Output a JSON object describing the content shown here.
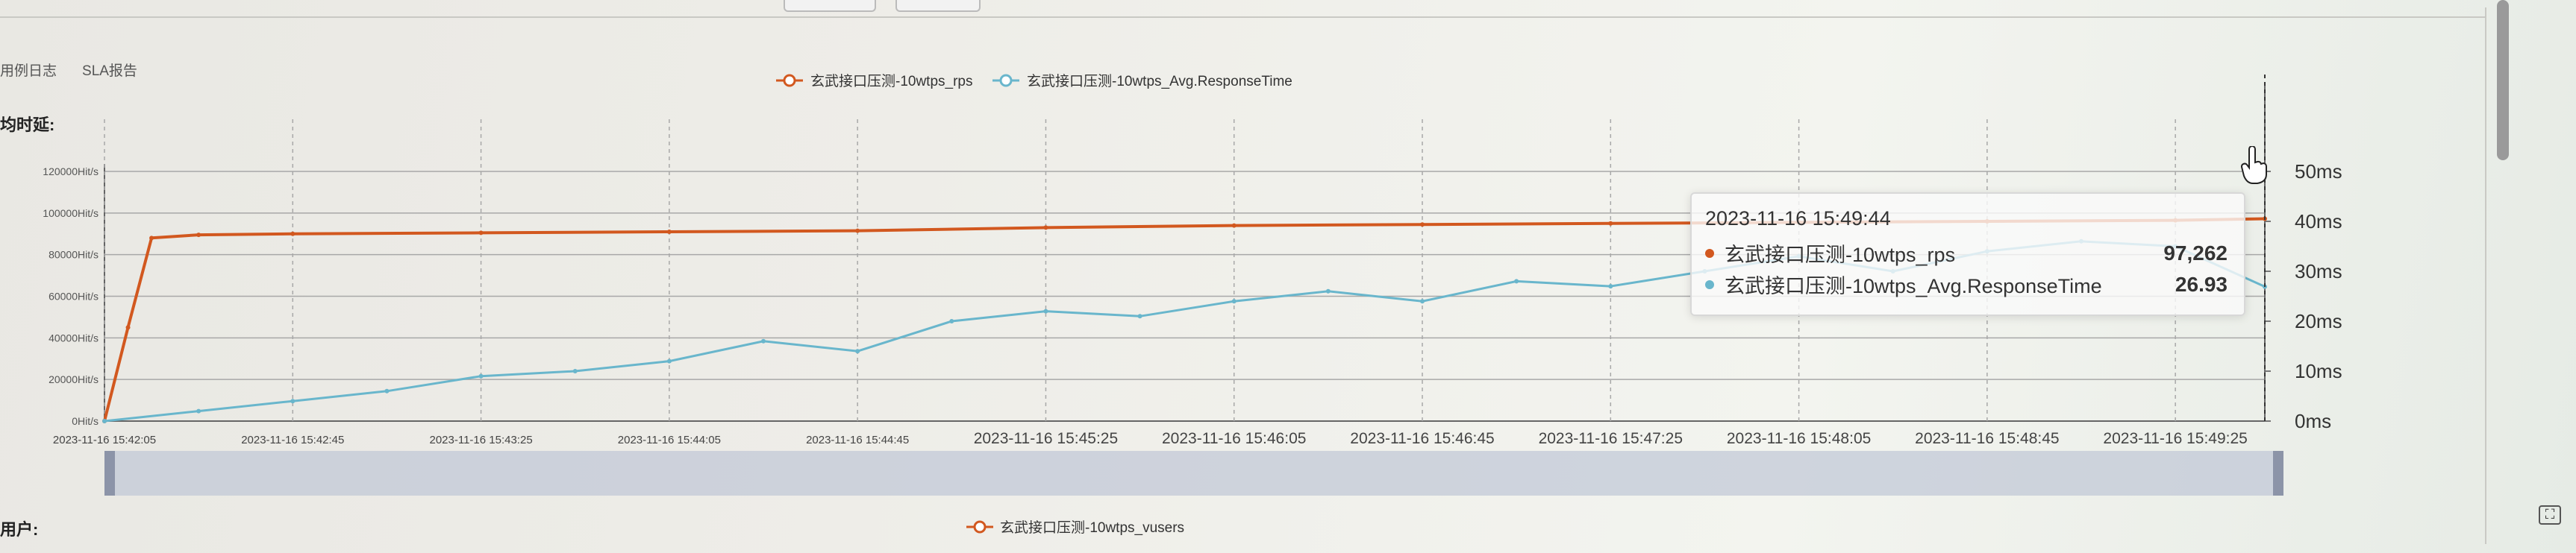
{
  "tabs": [
    "用例日志",
    "SLA报告"
  ],
  "section_titles": {
    "latency": "均时延:",
    "users": "用户:"
  },
  "icons": {
    "window": "window-icon",
    "cursor": "hand-cursor-icon"
  },
  "colors": {
    "rps": "#d2581f",
    "response_time": "#69b6cc",
    "grid": "#a8a8a8"
  },
  "tooltip": {
    "time": "2023-11-16 15:49:44",
    "rows": [
      {
        "name": "玄武接口压测-10wtps_rps",
        "value": "97,262",
        "color": "#d2581f"
      },
      {
        "name": "玄武接口压测-10wtps_Avg.ResponseTime",
        "value": "26.93",
        "color": "#69b6cc"
      }
    ]
  },
  "chart_data": {
    "type": "line",
    "legend": [
      "玄武接口压测-10wtps_rps",
      "玄武接口压测-10wtps_Avg.ResponseTime"
    ],
    "legend_position": "top-center",
    "x_ticks": [
      "2023-11-16 15:42:05",
      "2023-11-16 15:42:45",
      "2023-11-16 15:43:25",
      "2023-11-16 15:44:05",
      "2023-11-16 15:44:45",
      "2023-11-16 15:45:25",
      "2023-11-16 15:46:05",
      "2023-11-16 15:46:45",
      "2023-11-16 15:47:25",
      "2023-11-16 15:48:05",
      "2023-11-16 15:48:45",
      "2023-11-16 15:49:25"
    ],
    "y_left_ticks": [
      "0Hit/s",
      "20000Hit/s",
      "40000Hit/s",
      "60000Hit/s",
      "80000Hit/s",
      "100000Hit/s",
      "120000Hit/s"
    ],
    "y_left_range": [
      0,
      120000
    ],
    "y_right_ticks": [
      "0ms",
      "10ms",
      "20ms",
      "30ms",
      "40ms",
      "50ms"
    ],
    "y_right_range": [
      0,
      50
    ],
    "grid": true,
    "series": [
      {
        "name": "玄武接口压测-10wtps_rps",
        "axis": "left",
        "x": [
          "15:42:05",
          "15:42:10",
          "15:42:15",
          "15:42:25",
          "15:42:45",
          "15:43:25",
          "15:44:05",
          "15:44:45",
          "15:45:25",
          "15:46:05",
          "15:46:45",
          "15:47:25",
          "15:48:05",
          "15:48:45",
          "15:49:25",
          "15:49:44"
        ],
        "values": [
          0,
          45000,
          88000,
          89500,
          90000,
          90500,
          91000,
          91500,
          93000,
          94000,
          94500,
          95000,
          95500,
          96000,
          96500,
          97262
        ]
      },
      {
        "name": "玄武接口压测-10wtps_Avg.ResponseTime",
        "axis": "right",
        "x": [
          "15:42:05",
          "15:42:25",
          "15:42:45",
          "15:43:05",
          "15:43:25",
          "15:43:45",
          "15:44:05",
          "15:44:25",
          "15:44:45",
          "15:45:05",
          "15:45:25",
          "15:45:45",
          "15:46:05",
          "15:46:25",
          "15:46:45",
          "15:47:05",
          "15:47:25",
          "15:47:45",
          "15:48:05",
          "15:48:25",
          "15:48:45",
          "15:49:05",
          "15:49:25",
          "15:49:44"
        ],
        "values": [
          0,
          2,
          4,
          6,
          9,
          10,
          12,
          16,
          14,
          20,
          22,
          21,
          24,
          26,
          24,
          28,
          27,
          30,
          33,
          30,
          34,
          36,
          35,
          26.93
        ]
      }
    ]
  },
  "users_legend": "玄武接口压测-10wtps_vusers"
}
